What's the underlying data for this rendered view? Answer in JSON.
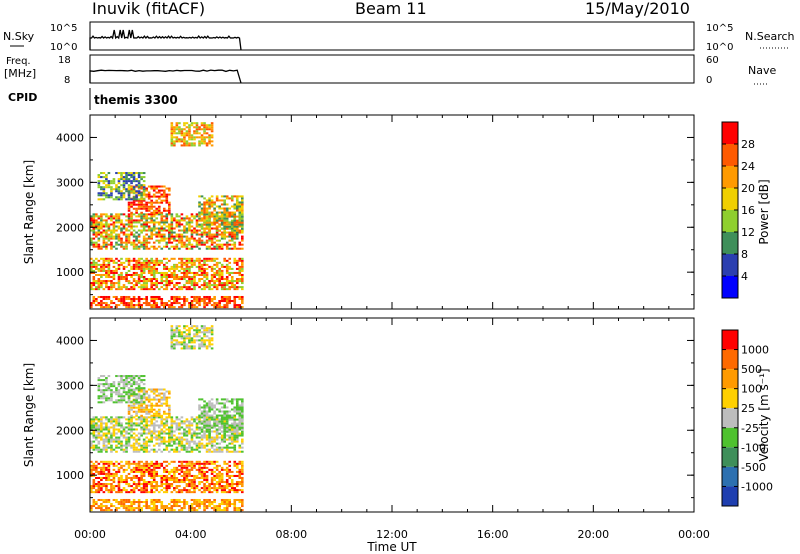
{
  "header": {
    "station": "Inuvik (fitACF)",
    "beam": "Beam 11",
    "date": "15/May/2010"
  },
  "noise_panel": {
    "left_label": "N.Sky",
    "left_ticks": [
      "10^5",
      "10^0"
    ],
    "right_ticks": [
      "10^5",
      "10^0"
    ],
    "right_label": "N.Search"
  },
  "freq_panel": {
    "left_label_line1": "Freq.",
    "left_label_line2": "[MHz]",
    "left_ticks": [
      "18",
      "8"
    ],
    "right_ticks": [
      "60",
      "0"
    ],
    "right_label": "Nave"
  },
  "cpid": {
    "label": "CPID",
    "value": "themis 3300"
  },
  "range_axis": {
    "label": "Slant Range [km]",
    "ticks": [
      "4000",
      "3000",
      "2000",
      "1000"
    ]
  },
  "time_axis": {
    "label": "Time UT",
    "ticks": [
      "00:00",
      "04:00",
      "08:00",
      "12:00",
      "16:00",
      "20:00",
      "00:00"
    ]
  },
  "power_scale": {
    "label": "Power [dB]",
    "ticks": [
      "28",
      "24",
      "20",
      "16",
      "12",
      "8",
      "4"
    ],
    "colors": [
      "#0000ff",
      "#2b3fb0",
      "#3f8f5a",
      "#8fcf2f",
      "#f0d000",
      "#ff9a00",
      "#ff5a00",
      "#ff0000"
    ]
  },
  "velocity_scale": {
    "label": "Velocity [m s⁻¹]",
    "ticks": [
      "1000",
      "500",
      "100",
      "25",
      "-25",
      "-100",
      "-500",
      "-1000"
    ],
    "colors": [
      "#1f3fb0",
      "#2d70b0",
      "#3f8f5a",
      "#4fc22f",
      "#bdbdbd",
      "#ffd000",
      "#ff9a00",
      "#ff6a00",
      "#ff0000"
    ]
  },
  "chart_data": {
    "type": "heatmap",
    "x_range_hours": [
      0,
      24
    ],
    "data_coverage_hours": [
      0,
      6
    ],
    "y_range_km": [
      180,
      4500
    ],
    "panels": [
      "noise",
      "frequency",
      "power",
      "velocity"
    ]
  }
}
